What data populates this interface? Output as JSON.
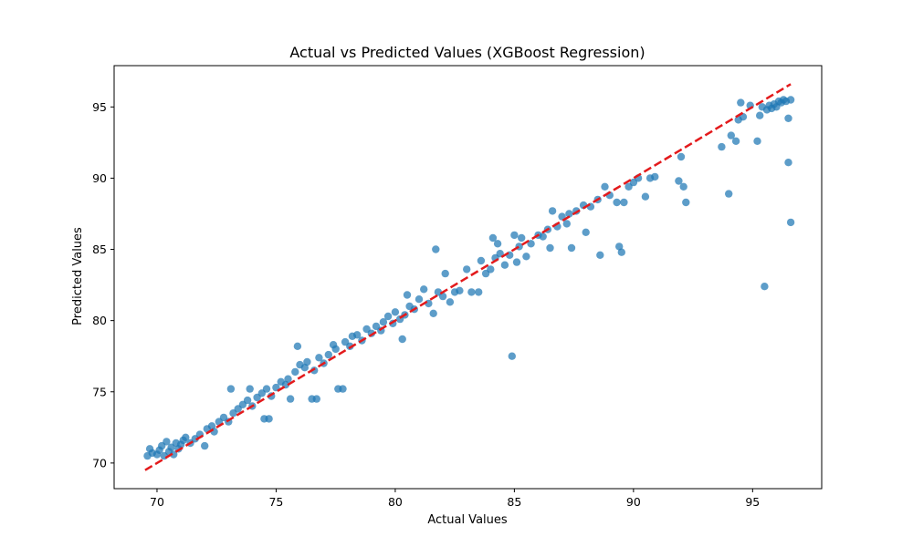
{
  "chart_data": {
    "type": "scatter",
    "title": "Actual vs Predicted Values (XGBoost Regression)",
    "xlabel": "Actual Values",
    "ylabel": "Predicted Values",
    "xlim": [
      68.2,
      97.9
    ],
    "ylim": [
      68.2,
      97.9
    ],
    "xticks": [
      70,
      75,
      80,
      85,
      90,
      95
    ],
    "yticks": [
      70,
      75,
      80,
      85,
      90,
      95
    ],
    "grid": false,
    "legend": "none",
    "reference_line": {
      "from": [
        69.5,
        69.5
      ],
      "to": [
        96.6,
        96.6
      ],
      "color": "#e31a1c",
      "style": "dashed"
    },
    "series": [
      {
        "color": "#1f77b4",
        "points": [
          [
            69.6,
            70.5
          ],
          [
            69.7,
            71.0
          ],
          [
            69.8,
            70.7
          ],
          [
            70.0,
            70.6
          ],
          [
            70.1,
            70.9
          ],
          [
            70.2,
            71.2
          ],
          [
            70.3,
            70.5
          ],
          [
            70.4,
            71.5
          ],
          [
            70.5,
            70.8
          ],
          [
            70.6,
            71.1
          ],
          [
            70.7,
            70.6
          ],
          [
            70.8,
            71.4
          ],
          [
            70.9,
            71.0
          ],
          [
            71.0,
            71.3
          ],
          [
            71.1,
            71.6
          ],
          [
            71.2,
            71.8
          ],
          [
            71.4,
            71.4
          ],
          [
            71.6,
            71.7
          ],
          [
            71.8,
            72.0
          ],
          [
            72.0,
            71.2
          ],
          [
            72.1,
            72.4
          ],
          [
            72.3,
            72.6
          ],
          [
            72.4,
            72.2
          ],
          [
            72.6,
            72.9
          ],
          [
            72.8,
            73.2
          ],
          [
            73.0,
            72.9
          ],
          [
            73.1,
            75.2
          ],
          [
            73.2,
            73.5
          ],
          [
            73.4,
            73.8
          ],
          [
            73.6,
            74.1
          ],
          [
            73.8,
            74.4
          ],
          [
            73.9,
            75.2
          ],
          [
            74.0,
            74.0
          ],
          [
            74.2,
            74.6
          ],
          [
            74.4,
            74.9
          ],
          [
            74.5,
            73.1
          ],
          [
            74.6,
            75.2
          ],
          [
            74.7,
            73.1
          ],
          [
            74.8,
            74.7
          ],
          [
            75.0,
            75.3
          ],
          [
            75.2,
            75.7
          ],
          [
            75.4,
            75.5
          ],
          [
            75.5,
            75.9
          ],
          [
            75.6,
            74.5
          ],
          [
            75.8,
            76.4
          ],
          [
            75.9,
            78.2
          ],
          [
            76.0,
            76.9
          ],
          [
            76.2,
            76.7
          ],
          [
            76.3,
            77.1
          ],
          [
            76.5,
            74.5
          ],
          [
            76.6,
            76.5
          ],
          [
            76.7,
            74.5
          ],
          [
            76.8,
            77.4
          ],
          [
            77.0,
            77.0
          ],
          [
            77.2,
            77.6
          ],
          [
            77.4,
            78.3
          ],
          [
            77.5,
            78.0
          ],
          [
            77.6,
            75.2
          ],
          [
            77.8,
            75.2
          ],
          [
            77.9,
            78.5
          ],
          [
            78.1,
            78.2
          ],
          [
            78.2,
            78.9
          ],
          [
            78.4,
            79.0
          ],
          [
            78.6,
            78.6
          ],
          [
            78.8,
            79.4
          ],
          [
            79.0,
            79.1
          ],
          [
            79.2,
            79.6
          ],
          [
            79.4,
            79.3
          ],
          [
            79.5,
            79.9
          ],
          [
            79.7,
            80.3
          ],
          [
            79.9,
            79.8
          ],
          [
            80.0,
            80.6
          ],
          [
            80.2,
            80.1
          ],
          [
            80.3,
            78.7
          ],
          [
            80.4,
            80.4
          ],
          [
            80.5,
            81.8
          ],
          [
            80.6,
            81.0
          ],
          [
            80.8,
            80.8
          ],
          [
            81.0,
            81.5
          ],
          [
            81.2,
            82.2
          ],
          [
            81.4,
            81.2
          ],
          [
            81.6,
            80.5
          ],
          [
            81.7,
            85.0
          ],
          [
            81.8,
            82.0
          ],
          [
            82.0,
            81.7
          ],
          [
            82.1,
            83.3
          ],
          [
            82.3,
            81.3
          ],
          [
            82.5,
            82.0
          ],
          [
            82.7,
            82.1
          ],
          [
            83.0,
            83.6
          ],
          [
            83.2,
            82.0
          ],
          [
            83.5,
            82.0
          ],
          [
            83.6,
            84.2
          ],
          [
            83.8,
            83.3
          ],
          [
            84.0,
            83.6
          ],
          [
            84.1,
            85.8
          ],
          [
            84.2,
            84.4
          ],
          [
            84.3,
            85.4
          ],
          [
            84.4,
            84.7
          ],
          [
            84.6,
            83.9
          ],
          [
            84.8,
            84.6
          ],
          [
            84.9,
            77.5
          ],
          [
            85.0,
            86.0
          ],
          [
            85.1,
            84.1
          ],
          [
            85.2,
            85.2
          ],
          [
            85.3,
            85.8
          ],
          [
            85.5,
            84.5
          ],
          [
            85.7,
            85.4
          ],
          [
            86.0,
            86.0
          ],
          [
            86.2,
            85.9
          ],
          [
            86.4,
            86.4
          ],
          [
            86.5,
            85.1
          ],
          [
            86.6,
            87.7
          ],
          [
            86.8,
            86.6
          ],
          [
            87.0,
            87.3
          ],
          [
            87.2,
            86.8
          ],
          [
            87.3,
            87.5
          ],
          [
            87.4,
            85.1
          ],
          [
            87.6,
            87.7
          ],
          [
            87.9,
            88.1
          ],
          [
            88.0,
            86.2
          ],
          [
            88.2,
            88.0
          ],
          [
            88.5,
            88.5
          ],
          [
            88.6,
            84.6
          ],
          [
            88.8,
            89.4
          ],
          [
            89.0,
            88.8
          ],
          [
            89.3,
            88.3
          ],
          [
            89.4,
            85.2
          ],
          [
            89.5,
            84.8
          ],
          [
            89.6,
            88.3
          ],
          [
            89.8,
            89.4
          ],
          [
            90.0,
            89.7
          ],
          [
            90.2,
            90.0
          ],
          [
            90.5,
            88.7
          ],
          [
            90.7,
            90.0
          ],
          [
            90.9,
            90.1
          ],
          [
            91.9,
            89.8
          ],
          [
            92.0,
            91.5
          ],
          [
            92.1,
            89.4
          ],
          [
            92.2,
            88.3
          ],
          [
            93.7,
            92.2
          ],
          [
            94.0,
            88.9
          ],
          [
            94.1,
            93.0
          ],
          [
            94.3,
            92.6
          ],
          [
            94.4,
            94.1
          ],
          [
            94.5,
            95.3
          ],
          [
            94.6,
            94.3
          ],
          [
            94.9,
            95.1
          ],
          [
            95.2,
            92.6
          ],
          [
            95.3,
            94.4
          ],
          [
            95.4,
            95.0
          ],
          [
            95.5,
            82.4
          ],
          [
            95.6,
            94.8
          ],
          [
            95.7,
            95.1
          ],
          [
            95.8,
            94.9
          ],
          [
            95.9,
            95.2
          ],
          [
            96.0,
            95.0
          ],
          [
            96.1,
            95.4
          ],
          [
            96.2,
            95.3
          ],
          [
            96.3,
            95.5
          ],
          [
            96.4,
            95.4
          ],
          [
            96.5,
            91.1
          ],
          [
            96.5,
            94.2
          ],
          [
            96.6,
            95.5
          ],
          [
            96.6,
            86.9
          ]
        ]
      }
    ]
  }
}
